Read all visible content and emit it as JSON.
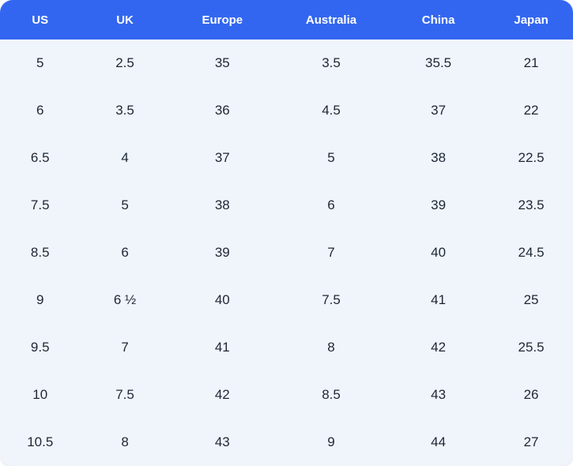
{
  "chart_data": {
    "type": "table",
    "columns": [
      "US",
      "UK",
      "Europe",
      "Australia",
      "China",
      "Japan"
    ],
    "rows": [
      [
        "5",
        "2.5",
        "35",
        "3.5",
        "35.5",
        "21"
      ],
      [
        "6",
        "3.5",
        "36",
        "4.5",
        "37",
        "22"
      ],
      [
        "6.5",
        "4",
        "37",
        "5",
        "38",
        "22.5"
      ],
      [
        "7.5",
        "5",
        "38",
        "6",
        "39",
        "23.5"
      ],
      [
        "8.5",
        "6",
        "39",
        "7",
        "40",
        "24.5"
      ],
      [
        "9",
        "6 ½",
        "40",
        "7.5",
        "41",
        "25"
      ],
      [
        "9.5",
        "7",
        "41",
        "8",
        "42",
        "25.5"
      ],
      [
        "10",
        "7.5",
        "42",
        "8.5",
        "43",
        "26"
      ],
      [
        "10.5",
        "8",
        "43",
        "9",
        "44",
        "27"
      ]
    ],
    "layout": {
      "legend": "none",
      "grid": "off",
      "header_position": "top"
    }
  },
  "colors": {
    "header_bg": "#3366f0",
    "header_text": "#ffffff",
    "body_bg": "#f0f4fb",
    "body_text": "#1d2733"
  }
}
